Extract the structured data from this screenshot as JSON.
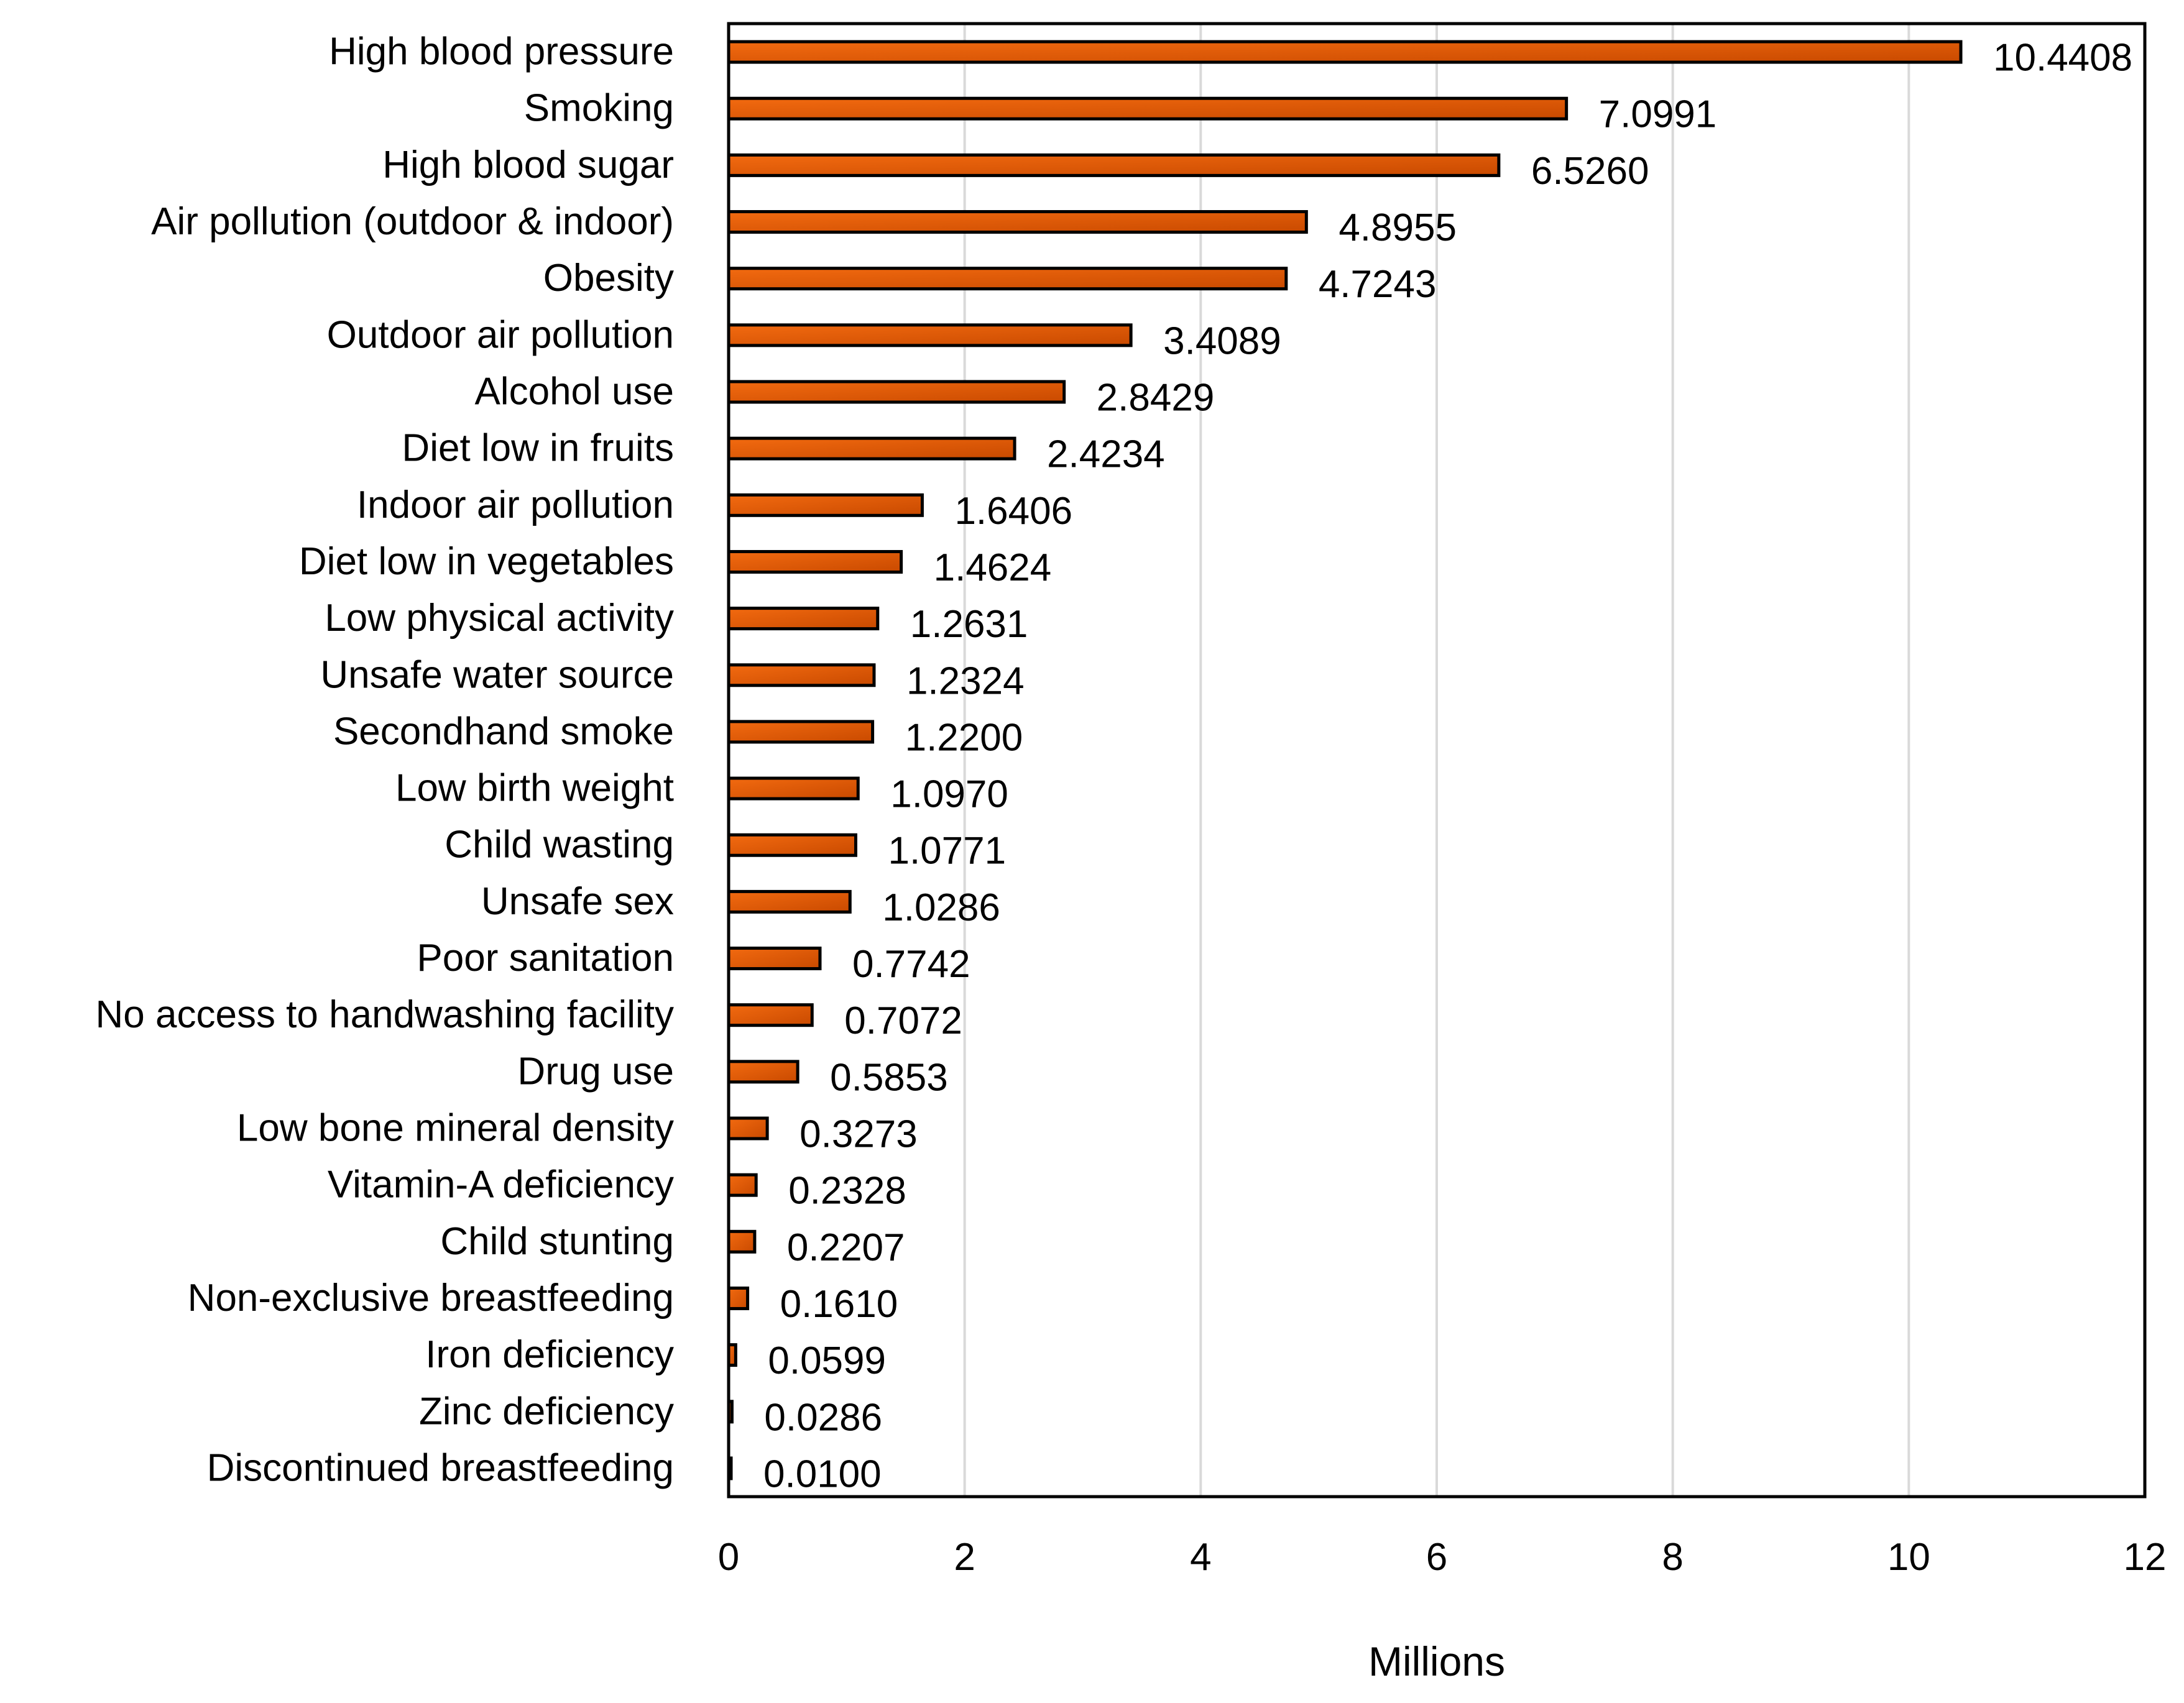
{
  "chart_data": {
    "type": "bar",
    "orientation": "horizontal",
    "title": "",
    "xlabel": "Millions",
    "ylabel": "",
    "xlim": [
      0,
      12
    ],
    "xticks": [
      0,
      2,
      4,
      6,
      8,
      10,
      12
    ],
    "grid": "vertical",
    "legend": "none",
    "colors": {
      "bar_fill": "#f26a10",
      "bar_fill_dark": "#c94a00",
      "bar_stroke": "#000000",
      "grid": "#d9d9d9",
      "axis": "#000000"
    },
    "categories": [
      "High blood pressure",
      "Smoking",
      "High blood sugar",
      "Air pollution (outdoor & indoor)",
      "Obesity",
      "Outdoor air pollution",
      "Alcohol use",
      "Diet low in fruits",
      "Indoor air pollution",
      "Diet low in vegetables",
      "Low physical activity",
      "Unsafe water source",
      "Secondhand smoke",
      "Low birth weight",
      "Child wasting",
      "Unsafe sex",
      "Poor sanitation",
      "No access to handwashing facility",
      "Drug use",
      "Low bone mineral density",
      "Vitamin-A deficiency",
      "Child stunting",
      "Non-exclusive breastfeeding",
      "Iron deficiency",
      "Zinc deficiency",
      "Discontinued breastfeeding"
    ],
    "values": [
      10.4408,
      7.0991,
      6.526,
      4.8955,
      4.7243,
      3.4089,
      2.8429,
      2.4234,
      1.6406,
      1.4624,
      1.2631,
      1.2324,
      1.22,
      1.097,
      1.0771,
      1.0286,
      0.7742,
      0.7072,
      0.5853,
      0.3273,
      0.2328,
      0.2207,
      0.161,
      0.0599,
      0.0286,
      0.01
    ],
    "value_labels": [
      "10.4408",
      "7.0991",
      "6.5260",
      "4.8955",
      "4.7243",
      "3.4089",
      "2.8429",
      "2.4234",
      "1.6406",
      "1.4624",
      "1.2631",
      "1.2324",
      "1.2200",
      "1.0970",
      "1.0771",
      "1.0286",
      "0.7742",
      "0.7072",
      "0.5853",
      "0.3273",
      "0.2328",
      "0.2207",
      "0.1610",
      "0.0599",
      "0.0286",
      "0.0100"
    ]
  }
}
